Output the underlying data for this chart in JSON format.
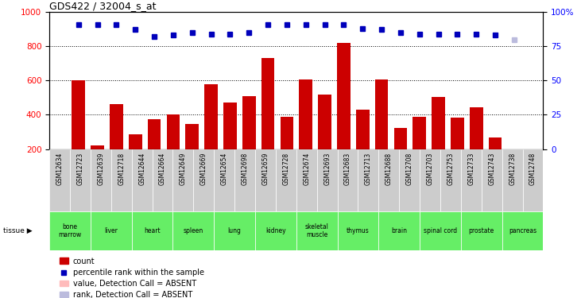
{
  "title": "GDS422 / 32004_s_at",
  "samples": [
    "GSM12634",
    "GSM12723",
    "GSM12639",
    "GSM12718",
    "GSM12644",
    "GSM12664",
    "GSM12649",
    "GSM12669",
    "GSM12654",
    "GSM12698",
    "GSM12659",
    "GSM12728",
    "GSM12674",
    "GSM12693",
    "GSM12683",
    "GSM12713",
    "GSM12688",
    "GSM12708",
    "GSM12703",
    "GSM12753",
    "GSM12733",
    "GSM12743",
    "GSM12738",
    "GSM12748"
  ],
  "bar_values": [
    600,
    220,
    460,
    285,
    375,
    400,
    345,
    580,
    470,
    510,
    730,
    390,
    605,
    520,
    820,
    430,
    605,
    325,
    390,
    505,
    385,
    445,
    265,
    200
  ],
  "percentile_values": [
    91,
    91,
    91,
    87,
    82,
    83,
    85,
    84,
    84,
    85,
    91,
    91,
    91,
    91,
    91,
    88,
    87,
    85,
    84,
    84,
    84,
    84,
    83,
    80
  ],
  "absent_sample_idx": 23,
  "tissues": [
    {
      "label": "bone\nmarrow",
      "start": 0,
      "end": 2
    },
    {
      "label": "liver",
      "start": 2,
      "end": 4
    },
    {
      "label": "heart",
      "start": 4,
      "end": 6
    },
    {
      "label": "spleen",
      "start": 6,
      "end": 8
    },
    {
      "label": "lung",
      "start": 8,
      "end": 10
    },
    {
      "label": "kidney",
      "start": 10,
      "end": 12
    },
    {
      "label": "skeletal\nmuscle",
      "start": 12,
      "end": 14
    },
    {
      "label": "thymus",
      "start": 14,
      "end": 16
    },
    {
      "label": "brain",
      "start": 16,
      "end": 18
    },
    {
      "label": "spinal cord",
      "start": 18,
      "end": 20
    },
    {
      "label": "prostate",
      "start": 20,
      "end": 22
    },
    {
      "label": "pancreas",
      "start": 22,
      "end": 24
    }
  ],
  "bar_color": "#CC0000",
  "dot_color": "#0000BB",
  "absent_dot_color": "#BBBBDD",
  "tissue_color": "#66EE66",
  "sample_bg_color": "#CCCCCC",
  "ylim_left": [
    200,
    1000
  ],
  "yticks_left": [
    200,
    400,
    600,
    800,
    1000
  ],
  "yticks_right": [
    0,
    25,
    50,
    75,
    100
  ],
  "grid_values": [
    400,
    600,
    800
  ],
  "legend_bar_color": "#CC0000",
  "legend_absent_bar_color": "#FFBBBB",
  "legend_absent_dot_color": "#BBBBDD"
}
